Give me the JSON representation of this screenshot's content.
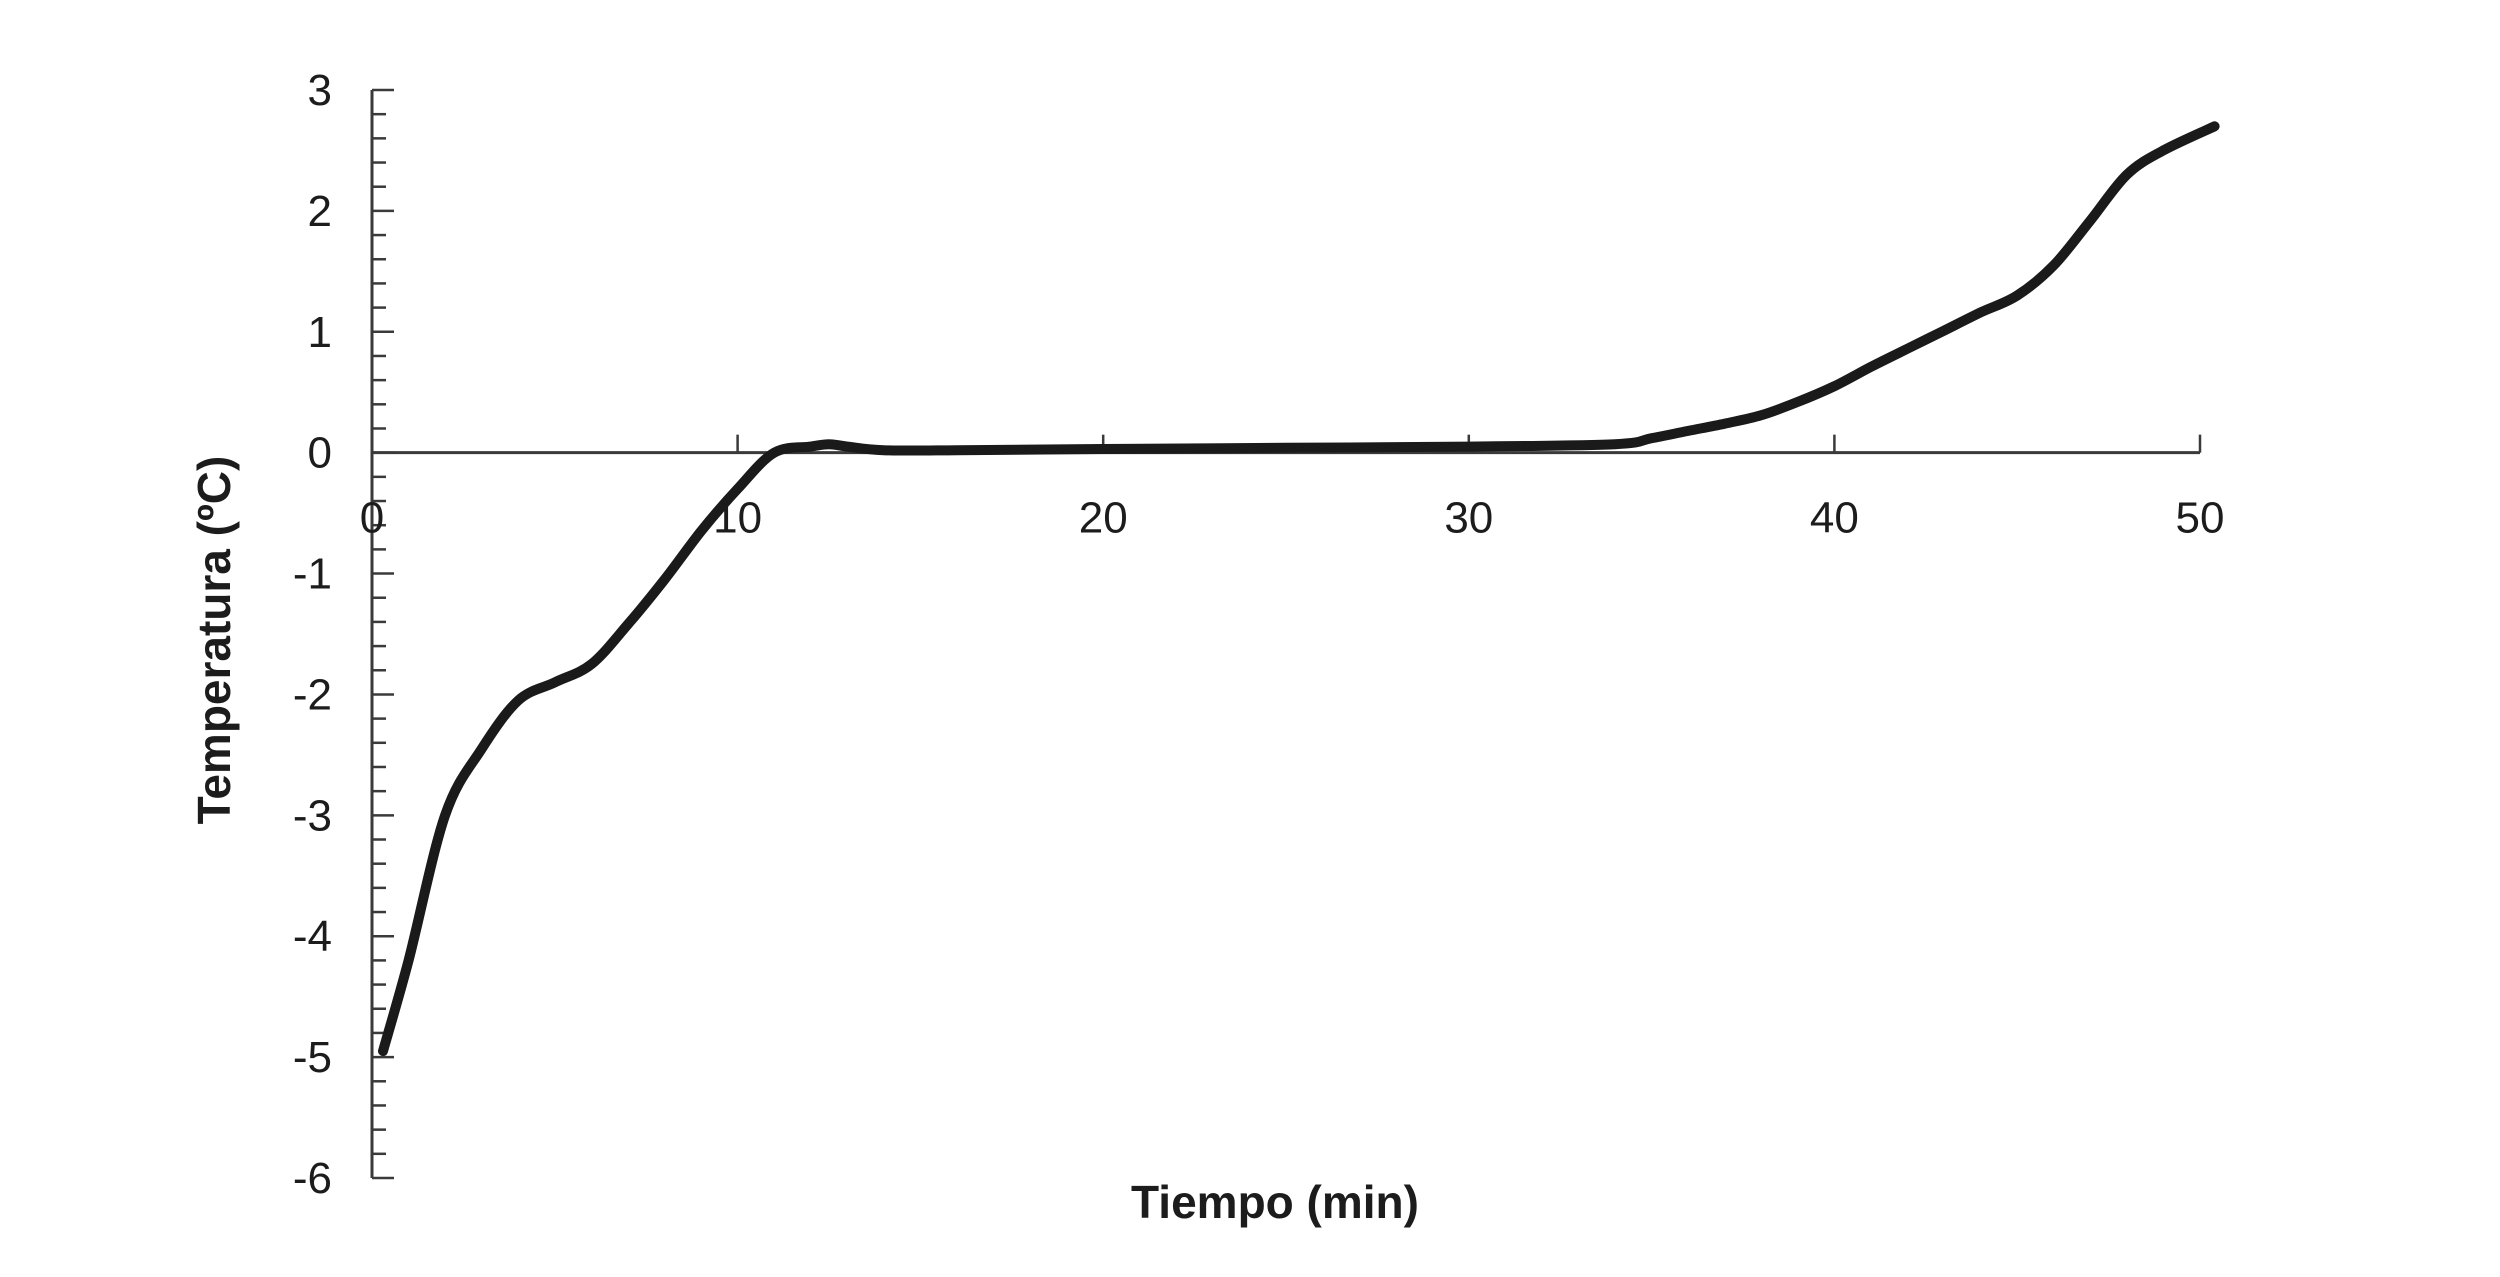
{
  "chart_data": {
    "type": "line",
    "title": "",
    "xlabel": "Tiempo (min)",
    "ylabel": "Temperatura (ºC)",
    "xlim": [
      0,
      50
    ],
    "ylim": [
      -6,
      3
    ],
    "x_ticks": [
      "0",
      "10",
      "20",
      "30",
      "40",
      "50"
    ],
    "y_ticks": [
      "3",
      "2",
      "1",
      "0",
      "-1",
      "-2",
      "-3",
      "-4",
      "-5",
      "-6"
    ],
    "grid": false,
    "legend": "none",
    "series": [
      {
        "color": "#1a1a1a",
        "x": [
          0.3,
          1,
          2,
          3,
          4,
          5,
          6,
          7,
          8,
          9,
          10,
          11,
          12,
          12.5,
          13,
          14,
          16,
          20,
          25,
          30,
          34,
          35,
          36,
          37,
          38,
          39,
          40,
          41,
          42,
          43,
          44,
          45,
          46,
          47,
          48,
          49,
          50.4
        ],
        "y": [
          -4.95,
          -4.2,
          -3.0,
          -2.45,
          -2.05,
          -1.9,
          -1.75,
          -1.42,
          -1.05,
          -0.65,
          -0.3,
          0.0,
          0.05,
          0.07,
          0.05,
          0.02,
          0.02,
          0.03,
          0.04,
          0.05,
          0.07,
          0.12,
          0.18,
          0.24,
          0.31,
          0.42,
          0.55,
          0.71,
          0.86,
          1.01,
          1.16,
          1.3,
          1.55,
          1.92,
          2.3,
          2.5,
          2.7
        ]
      }
    ]
  }
}
